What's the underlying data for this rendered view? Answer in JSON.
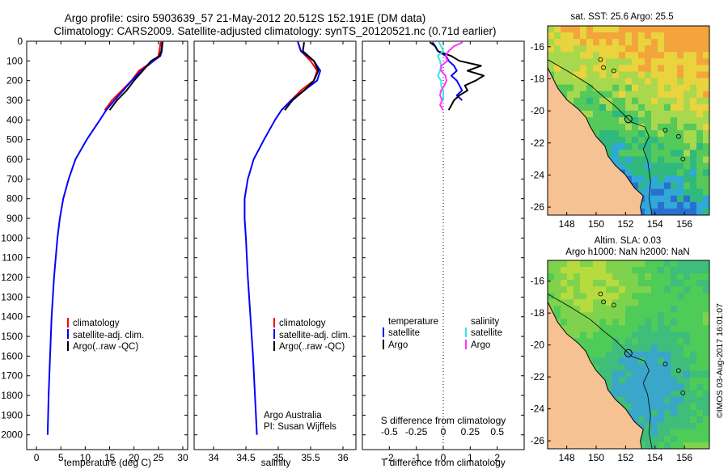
{
  "header": {
    "line1": "Argo profile: csiro 5903639_57 21-May-2012 20.512S 152.191E (DM data)",
    "line2": "Climatology: CARS2009. Satellite-adjusted climatology: synTS_20120521.nc (0.71d earlier)"
  },
  "colors": {
    "climatology": "#ff0000",
    "satellite": "#0000ff",
    "argo": "#000000",
    "argo_salinity": "#ff33ff",
    "satellite_salinity": "#33e6e6",
    "land": "#f6c294"
  },
  "depth_axis": {
    "ticks": [
      0,
      100,
      200,
      300,
      400,
      500,
      600,
      700,
      800,
      900,
      1000,
      1100,
      1200,
      1300,
      1400,
      1500,
      1600,
      1700,
      1800,
      1900,
      2000
    ],
    "range": [
      0,
      2075
    ]
  },
  "chart_data": [
    {
      "type": "line",
      "id": "temperature",
      "xlabel": "temperature (deg C)",
      "ylabel": "",
      "xlim": [
        -2,
        31
      ],
      "ylim": [
        2075,
        0
      ],
      "xticks": [
        0,
        5,
        10,
        15,
        20,
        25,
        30
      ],
      "legend": [
        "climatology",
        "satellite-adj. clim.",
        "Argo(..raw -QC)"
      ],
      "series": [
        {
          "name": "climatology",
          "depth": [
            0,
            50,
            75,
            100,
            150,
            200,
            250,
            300,
            350
          ],
          "values": [
            25.5,
            25.2,
            25.0,
            24.0,
            21.0,
            19.5,
            17.5,
            15.5,
            14.0
          ]
        },
        {
          "name": "satellite-adj. clim.",
          "depth": [
            0,
            50,
            75,
            100,
            150,
            200,
            250,
            300,
            350,
            400,
            500,
            600,
            700,
            800,
            900,
            1000,
            1200,
            1400,
            1600,
            1800,
            2000
          ],
          "values": [
            25.9,
            25.7,
            25.4,
            24.0,
            21.5,
            19.5,
            17.8,
            16.0,
            14.3,
            13.0,
            10.3,
            8.0,
            6.6,
            5.5,
            4.8,
            4.3,
            3.6,
            3.1,
            2.8,
            2.5,
            2.3
          ]
        },
        {
          "name": "Argo(..raw -QC)",
          "depth": [
            5,
            50,
            75,
            100,
            150,
            200,
            250,
            300,
            350
          ],
          "values": [
            25.8,
            25.6,
            25.2,
            23.5,
            21.8,
            20.0,
            18.5,
            16.5,
            15.0
          ]
        }
      ]
    },
    {
      "type": "line",
      "id": "salinity",
      "xlabel": "salinity",
      "xlim": [
        33.7,
        36.2
      ],
      "ylim": [
        2075,
        0
      ],
      "xticks": [
        34,
        34.5,
        35,
        35.5,
        36
      ],
      "legend": [
        "climatology",
        "satellite-adj. clim.",
        "Argo(..raw -QC)"
      ],
      "annotation": [
        "Argo Australia",
        "PI: Susan Wijffels"
      ],
      "series": [
        {
          "name": "climatology",
          "depth": [
            0,
            50,
            100,
            150,
            200,
            250,
            300,
            350
          ],
          "values": [
            35.3,
            35.35,
            35.5,
            35.6,
            35.55,
            35.35,
            35.2,
            35.05
          ]
        },
        {
          "name": "satellite-adj. clim.",
          "depth": [
            0,
            50,
            100,
            150,
            200,
            250,
            300,
            350,
            400,
            500,
            600,
            700,
            800,
            900,
            1000,
            1200,
            1400,
            1600,
            1800,
            2000
          ],
          "values": [
            35.3,
            35.35,
            35.55,
            35.65,
            35.6,
            35.4,
            35.2,
            35.05,
            34.95,
            34.78,
            34.62,
            34.53,
            34.48,
            34.48,
            34.5,
            34.53,
            34.57,
            34.61,
            34.64,
            34.67
          ]
        },
        {
          "name": "Argo(..raw -QC)",
          "depth": [
            5,
            50,
            100,
            150,
            200,
            250,
            300,
            350
          ],
          "values": [
            35.4,
            35.38,
            35.55,
            35.62,
            35.55,
            35.4,
            35.22,
            35.1
          ]
        }
      ]
    },
    {
      "type": "line",
      "id": "differences",
      "title_top": "S difference from climatology",
      "xlabel": "T difference from climatology",
      "t_xlim": [
        -3,
        3
      ],
      "t_xticks": [
        -2,
        -1,
        0,
        1,
        2
      ],
      "s_xticks": [
        -0.5,
        -0.25,
        0,
        0.25,
        0.5
      ],
      "s_tick_labels": [
        "-0.5",
        "-0.25",
        "0",
        "0.25",
        "0.5"
      ],
      "legend_titles": [
        "temperature",
        "salinity"
      ],
      "legend": [
        "satellite",
        "Argo",
        "satellite",
        "Argo"
      ],
      "series": [
        {
          "name": "T satellite",
          "depth": [
            5,
            25,
            50,
            75,
            100,
            125,
            150,
            175,
            200,
            225,
            250,
            275,
            300
          ],
          "values": [
            -0.4,
            -0.3,
            -0.2,
            0.1,
            0.2,
            0.4,
            0.5,
            0.3,
            0.5,
            0.6,
            0.7,
            0.5,
            0.7
          ]
        },
        {
          "name": "T Argo",
          "depth": [
            5,
            25,
            50,
            75,
            100,
            125,
            150,
            175,
            200,
            225,
            250,
            275,
            300,
            325,
            350
          ],
          "values": [
            -0.5,
            -0.3,
            -0.2,
            0.3,
            0.6,
            1.4,
            0.9,
            1.5,
            1.2,
            0.8,
            0.9,
            0.6,
            0.4,
            0.3,
            0.2
          ]
        },
        {
          "name": "S satellite",
          "depth": [
            5,
            25,
            50,
            75,
            100,
            125,
            150,
            175,
            200,
            225,
            250,
            275,
            300
          ],
          "values": [
            -0.04,
            -0.02,
            0.0,
            -0.05,
            -0.03,
            -0.02,
            -0.03,
            -0.05,
            -0.02,
            -0.02,
            0.0,
            0.0,
            0.0
          ]
        },
        {
          "name": "S Argo",
          "depth": [
            5,
            25,
            50,
            75,
            100,
            125,
            150,
            175,
            200,
            225,
            250,
            275,
            300,
            325,
            350
          ],
          "values": [
            0.18,
            0.1,
            0.05,
            0.02,
            0.04,
            -0.02,
            -0.02,
            0.02,
            0.03,
            0.01,
            -0.02,
            -0.03,
            -0.01,
            -0.03,
            0.0
          ]
        }
      ]
    },
    {
      "type": "heatmap",
      "id": "sst-map",
      "title": "sat. SST: 25.6  Argo: 25.5",
      "xlim": [
        146.7,
        157.7
      ],
      "ylim": [
        -26.5,
        -14.7
      ],
      "xticks": [
        148,
        150,
        152,
        154,
        156
      ],
      "yticks": [
        -16,
        -18,
        -20,
        -22,
        -24,
        -26
      ],
      "argo_position": [
        152.191,
        -20.512
      ]
    },
    {
      "type": "heatmap",
      "id": "sla-map",
      "title_line1": "Altim. SLA: 0.03",
      "title_line2": "Argo h1000: NaN h2000: NaN",
      "xlim": [
        146.7,
        157.7
      ],
      "ylim": [
        -26.5,
        -14.7
      ],
      "xticks": [
        148,
        150,
        152,
        154,
        156
      ],
      "yticks": [
        -16,
        -18,
        -20,
        -22,
        -24,
        -26
      ],
      "argo_position": [
        152.191,
        -20.512
      ]
    }
  ],
  "footer": {
    "stamp": "©IMOS 03-Aug-2017 16:01:07"
  }
}
